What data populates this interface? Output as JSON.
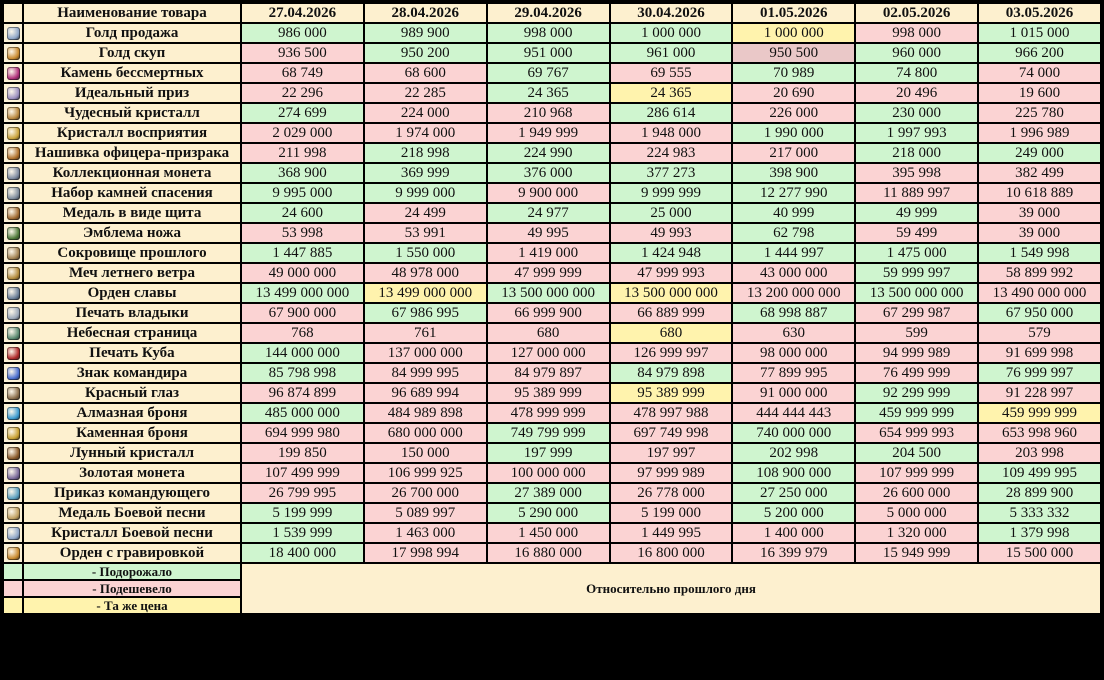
{
  "header": {
    "name_label": "Наименование товара",
    "dates": [
      "27.04.2026",
      "28.04.2026",
      "29.04.2026",
      "30.04.2026",
      "01.05.2026",
      "02.05.2026",
      "03.05.2026"
    ]
  },
  "rows": [
    {
      "name": "Голд продажа",
      "values": [
        "986 000",
        "989 900",
        "998 000",
        "1 000 000",
        "1 000 000",
        "998 000",
        "1 015 000"
      ],
      "colors": [
        "#cff5cf",
        "#cff5cf",
        "#cff5cf",
        "#cff5cf",
        "#fff3ad",
        "#fbd3d3",
        "#cff5cf"
      ]
    },
    {
      "name": "Голд скуп",
      "values": [
        "936 500",
        "950 200",
        "951 000",
        "961 000",
        "950 500",
        "960 000",
        "966 200"
      ],
      "colors": [
        "#fbd3d3",
        "#cff5cf",
        "#cff5cf",
        "#cff5cf",
        "#eac8c8",
        "#cff5cf",
        "#cff5cf"
      ]
    },
    {
      "name": "Камень бессмертных",
      "values": [
        "68 749",
        "68 600",
        "69 767",
        "69 555",
        "70 989",
        "74 800",
        "74 000"
      ],
      "colors": [
        "#fbd3d3",
        "#fbd3d3",
        "#cff5cf",
        "#fbd3d3",
        "#cff5cf",
        "#cff5cf",
        "#fbd3d3"
      ]
    },
    {
      "name": "Идеальный приз",
      "values": [
        "22 296",
        "22 285",
        "24 365",
        "24 365",
        "20 690",
        "20 496",
        "19 600"
      ],
      "colors": [
        "#fbd3d3",
        "#fbd3d3",
        "#cff5cf",
        "#fff3ad",
        "#fbd3d3",
        "#fbd3d3",
        "#fbd3d3"
      ]
    },
    {
      "name": "Чудесный кристалл",
      "values": [
        "274 699",
        "224 000",
        "210 968",
        "286 614",
        "226 000",
        "230 000",
        "225 780"
      ],
      "colors": [
        "#cff5cf",
        "#fbd3d3",
        "#fbd3d3",
        "#cff5cf",
        "#fbd3d3",
        "#cff5cf",
        "#fbd3d3"
      ]
    },
    {
      "name": "Кристалл восприятия",
      "values": [
        "2 029 000",
        "1 974 000",
        "1 949 999",
        "1 948 000",
        "1 990 000",
        "1 997 993",
        "1 996 989"
      ],
      "colors": [
        "#fbd3d3",
        "#fbd3d3",
        "#fbd3d3",
        "#fbd3d3",
        "#cff5cf",
        "#cff5cf",
        "#fbd3d3"
      ]
    },
    {
      "name": "Нашивка офицера-призрака",
      "values": [
        "211 998",
        "218 998",
        "224 990",
        "224 983",
        "217 000",
        "218 000",
        "249 000"
      ],
      "colors": [
        "#fbd3d3",
        "#cff5cf",
        "#cff5cf",
        "#fbd3d3",
        "#fbd3d3",
        "#cff5cf",
        "#cff5cf"
      ]
    },
    {
      "name": "Коллекционная монета",
      "values": [
        "368 900",
        "369 999",
        "376 000",
        "377 273",
        "398 900",
        "395 998",
        "382 499"
      ],
      "colors": [
        "#cff5cf",
        "#cff5cf",
        "#cff5cf",
        "#cff5cf",
        "#cff5cf",
        "#fbd3d3",
        "#fbd3d3"
      ]
    },
    {
      "name": "Набор камней спасения",
      "values": [
        "9 995 000",
        "9 999 000",
        "9 900 000",
        "9 999 999",
        "12 277 990",
        "11 889 997",
        "10 618 889"
      ],
      "colors": [
        "#cff5cf",
        "#cff5cf",
        "#fbd3d3",
        "#cff5cf",
        "#cff5cf",
        "#fbd3d3",
        "#fbd3d3"
      ]
    },
    {
      "name": "Медаль в виде щита",
      "values": [
        "24 600",
        "24 499",
        "24 977",
        "25 000",
        "40 999",
        "49 999",
        "39 000"
      ],
      "colors": [
        "#cff5cf",
        "#fbd3d3",
        "#cff5cf",
        "#cff5cf",
        "#cff5cf",
        "#cff5cf",
        "#fbd3d3"
      ]
    },
    {
      "name": "Эмблема ножа",
      "values": [
        "53 998",
        "53 991",
        "49 995",
        "49 993",
        "62 798",
        "59 499",
        "39 000"
      ],
      "colors": [
        "#fbd3d3",
        "#fbd3d3",
        "#fbd3d3",
        "#fbd3d3",
        "#cff5cf",
        "#fbd3d3",
        "#fbd3d3"
      ]
    },
    {
      "name": "Сокровище прошлого",
      "values": [
        "1 447 885",
        "1 550 000",
        "1 419 000",
        "1 424 948",
        "1 444 997",
        "1 475 000",
        "1 549 998"
      ],
      "colors": [
        "#cff5cf",
        "#cff5cf",
        "#fbd3d3",
        "#cff5cf",
        "#cff5cf",
        "#cff5cf",
        "#cff5cf"
      ]
    },
    {
      "name": "Меч летнего ветра",
      "values": [
        "49 000 000",
        "48 978 000",
        "47 999 999",
        "47 999 993",
        "43 000 000",
        "59 999 997",
        "58 899 992"
      ],
      "colors": [
        "#fbd3d3",
        "#fbd3d3",
        "#fbd3d3",
        "#fbd3d3",
        "#fbd3d3",
        "#cff5cf",
        "#fbd3d3"
      ]
    },
    {
      "name": "Орден славы",
      "values": [
        "13 499 000 000",
        "13 499 000 000",
        "13 500 000 000",
        "13 500 000 000",
        "13 200 000 000",
        "13 500 000 000",
        "13 490 000 000"
      ],
      "colors": [
        "#cff5cf",
        "#fff3ad",
        "#cff5cf",
        "#fff3ad",
        "#fbd3d3",
        "#cff5cf",
        "#fbd3d3"
      ]
    },
    {
      "name": "Печать владыки",
      "values": [
        "67 900 000",
        "67 986 995",
        "66 999 900",
        "66 889 999",
        "68 998 887",
        "67 299 987",
        "67 950 000"
      ],
      "colors": [
        "#fbd3d3",
        "#cff5cf",
        "#fbd3d3",
        "#fbd3d3",
        "#cff5cf",
        "#fbd3d3",
        "#cff5cf"
      ]
    },
    {
      "name": "Небесная страница",
      "values": [
        "768",
        "761",
        "680",
        "680",
        "630",
        "599",
        "579"
      ],
      "colors": [
        "#fbd3d3",
        "#fbd3d3",
        "#fbd3d3",
        "#fff3ad",
        "#fbd3d3",
        "#fbd3d3",
        "#fbd3d3"
      ]
    },
    {
      "name": "Печать Куба",
      "values": [
        "144 000 000",
        "137 000 000",
        "127 000 000",
        "126 999 997",
        "98 000 000",
        "94 999 989",
        "91 699 998"
      ],
      "colors": [
        "#cff5cf",
        "#fbd3d3",
        "#fbd3d3",
        "#fbd3d3",
        "#fbd3d3",
        "#fbd3d3",
        "#fbd3d3"
      ]
    },
    {
      "name": "Знак командира",
      "values": [
        "85 798 998",
        "84 999 995",
        "84 979 897",
        "84 979 898",
        "77 899 995",
        "76 499 999",
        "76 999 997"
      ],
      "colors": [
        "#cff5cf",
        "#fbd3d3",
        "#fbd3d3",
        "#cff5cf",
        "#fbd3d3",
        "#fbd3d3",
        "#cff5cf"
      ]
    },
    {
      "name": "Красный глаз",
      "values": [
        "96 874 899",
        "96 689 994",
        "95 389 999",
        "95 389 999",
        "91 000 000",
        "92 299 999",
        "91 228 997"
      ],
      "colors": [
        "#fbd3d3",
        "#fbd3d3",
        "#fbd3d3",
        "#fff3ad",
        "#fbd3d3",
        "#cff5cf",
        "#fbd3d3"
      ]
    },
    {
      "name": "Алмазная броня",
      "values": [
        "485 000 000",
        "484 989 898",
        "478 999 999",
        "478 997 988",
        "444 444 443",
        "459 999 999",
        "459 999 999"
      ],
      "colors": [
        "#cff5cf",
        "#fbd3d3",
        "#fbd3d3",
        "#fbd3d3",
        "#fbd3d3",
        "#cff5cf",
        "#fff3ad"
      ]
    },
    {
      "name": "Каменная броня",
      "values": [
        "694 999 980",
        "680 000 000",
        "749 799 999",
        "697 749 998",
        "740 000 000",
        "654 999 993",
        "653 998 960"
      ],
      "colors": [
        "#fbd3d3",
        "#fbd3d3",
        "#cff5cf",
        "#fbd3d3",
        "#cff5cf",
        "#fbd3d3",
        "#fbd3d3"
      ]
    },
    {
      "name": "Лунный кристалл",
      "values": [
        "199 850",
        "150 000",
        "197 999",
        "197 997",
        "202 998",
        "204 500",
        "203 998"
      ],
      "colors": [
        "#fbd3d3",
        "#fbd3d3",
        "#cff5cf",
        "#fbd3d3",
        "#cff5cf",
        "#cff5cf",
        "#fbd3d3"
      ]
    },
    {
      "name": "Золотая монета",
      "values": [
        "107 499 999",
        "106 999 925",
        "100 000 000",
        "97 999 989",
        "108 900 000",
        "107 999 999",
        "109 499 995"
      ],
      "colors": [
        "#fbd3d3",
        "#fbd3d3",
        "#fbd3d3",
        "#fbd3d3",
        "#cff5cf",
        "#fbd3d3",
        "#cff5cf"
      ]
    },
    {
      "name": "Приказ командующего",
      "values": [
        "26 799 995",
        "26 700 000",
        "27 389 000",
        "26 778 000",
        "27 250 000",
        "26 600 000",
        "28 899 900"
      ],
      "colors": [
        "#fbd3d3",
        "#fbd3d3",
        "#cff5cf",
        "#fbd3d3",
        "#cff5cf",
        "#fbd3d3",
        "#cff5cf"
      ]
    },
    {
      "name": "Медаль Боевой песни",
      "values": [
        "5 199 999",
        "5 089 997",
        "5 290 000",
        "5 199 000",
        "5 200 000",
        "5 000 000",
        "5 333 332"
      ],
      "colors": [
        "#cff5cf",
        "#fbd3d3",
        "#cff5cf",
        "#fbd3d3",
        "#cff5cf",
        "#fbd3d3",
        "#cff5cf"
      ]
    },
    {
      "name": "Кристалл Боевой песни",
      "values": [
        "1 539 999",
        "1 463 000",
        "1 450 000",
        "1 449 995",
        "1 400 000",
        "1 320 000",
        "1 379 998"
      ],
      "colors": [
        "#cff5cf",
        "#fbd3d3",
        "#fbd3d3",
        "#fbd3d3",
        "#fbd3d3",
        "#fbd3d3",
        "#cff5cf"
      ]
    },
    {
      "name": "Орден с гравировкой",
      "values": [
        "18 400 000",
        "17 998 994",
        "16 880 000",
        "16 800 000",
        "16 399 979",
        "15 949 999",
        "15 500 000"
      ],
      "colors": [
        "#cff5cf",
        "#fbd3d3",
        "#fbd3d3",
        "#fbd3d3",
        "#fbd3d3",
        "#fbd3d3",
        "#fbd3d3"
      ]
    }
  ],
  "legend": [
    {
      "color": "#cff5cf",
      "label": "- Подорожало"
    },
    {
      "color": "#fbd3d3",
      "label": "- Подешевело"
    },
    {
      "color": "#fff3ad",
      "label": "- Та же цена"
    }
  ],
  "note": "Относительно прошлого дня"
}
